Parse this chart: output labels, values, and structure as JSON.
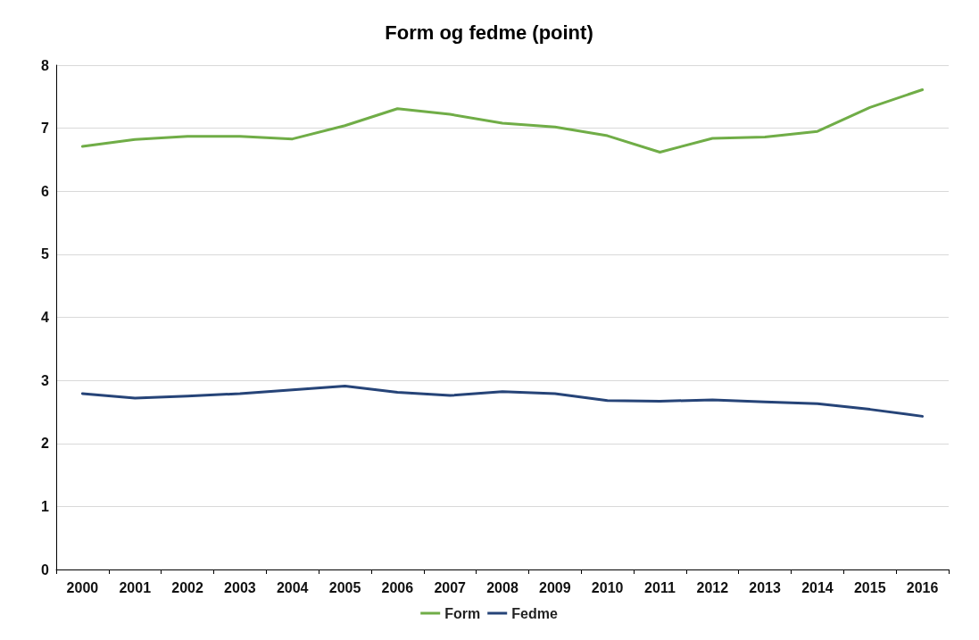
{
  "chart_data": {
    "type": "line",
    "title": "Form og fedme (point)",
    "categories": [
      "2000",
      "2001",
      "2002",
      "2003",
      "2004",
      "2005",
      "2006",
      "2007",
      "2008",
      "2009",
      "2010",
      "2011",
      "2012",
      "2013",
      "2014",
      "2015",
      "2016"
    ],
    "series": [
      {
        "name": "Form",
        "color": "#70ad47",
        "values": [
          6.71,
          6.82,
          6.87,
          6.87,
          6.83,
          7.04,
          7.31,
          7.22,
          7.08,
          7.02,
          6.88,
          6.62,
          6.84,
          6.86,
          6.95,
          7.33,
          7.61
        ]
      },
      {
        "name": "Fedme",
        "color": "#264478",
        "values": [
          2.79,
          2.72,
          2.75,
          2.79,
          2.85,
          2.91,
          2.81,
          2.76,
          2.82,
          2.79,
          2.68,
          2.67,
          2.69,
          2.66,
          2.63,
          2.54,
          2.43
        ]
      }
    ],
    "ylim": [
      0,
      8
    ],
    "yticks": [
      0,
      1,
      2,
      3,
      4,
      5,
      6,
      7,
      8
    ],
    "grid": "y",
    "legend": "bottom",
    "marker": "none",
    "line_style": "solid"
  }
}
